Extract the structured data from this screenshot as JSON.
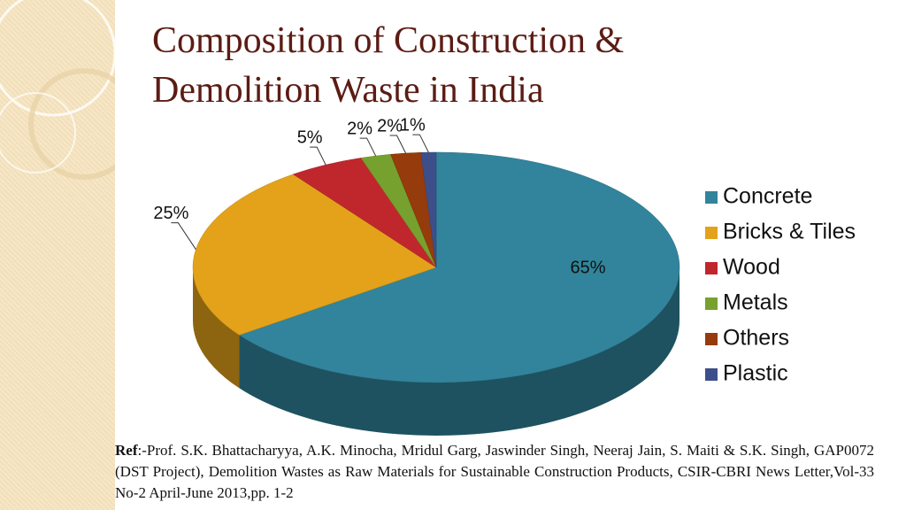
{
  "chart_data": {
    "type": "pie3d",
    "title": "Composition of Construction & Demolition Waste in India",
    "categories": [
      "Concrete",
      "Bricks & Tiles",
      "Wood",
      "Metals",
      "Others",
      "Plastic"
    ],
    "values": [
      65,
      25,
      5,
      2,
      2,
      1
    ],
    "value_labels": [
      "65%",
      "25%",
      "5%",
      "2%",
      "2%",
      "1%"
    ],
    "colors": [
      "#31849b",
      "#e3a21a",
      "#c0272d",
      "#77a12e",
      "#953b0c",
      "#3d4f8b"
    ],
    "legend": "right"
  },
  "reference": {
    "label": "Ref",
    "text": ":-Prof. S.K. Bhattacharyya, A.K. Minocha, Mridul Garg, Jaswinder Singh, Neeraj Jain, S. Maiti & S.K. Singh, GAP0072 (DST Project), Demolition Wastes as Raw Materials for Sustainable Construction Products, CSIR-CBRI News Letter,Vol-33 No-2 April-June 2013,pp. 1-2"
  }
}
